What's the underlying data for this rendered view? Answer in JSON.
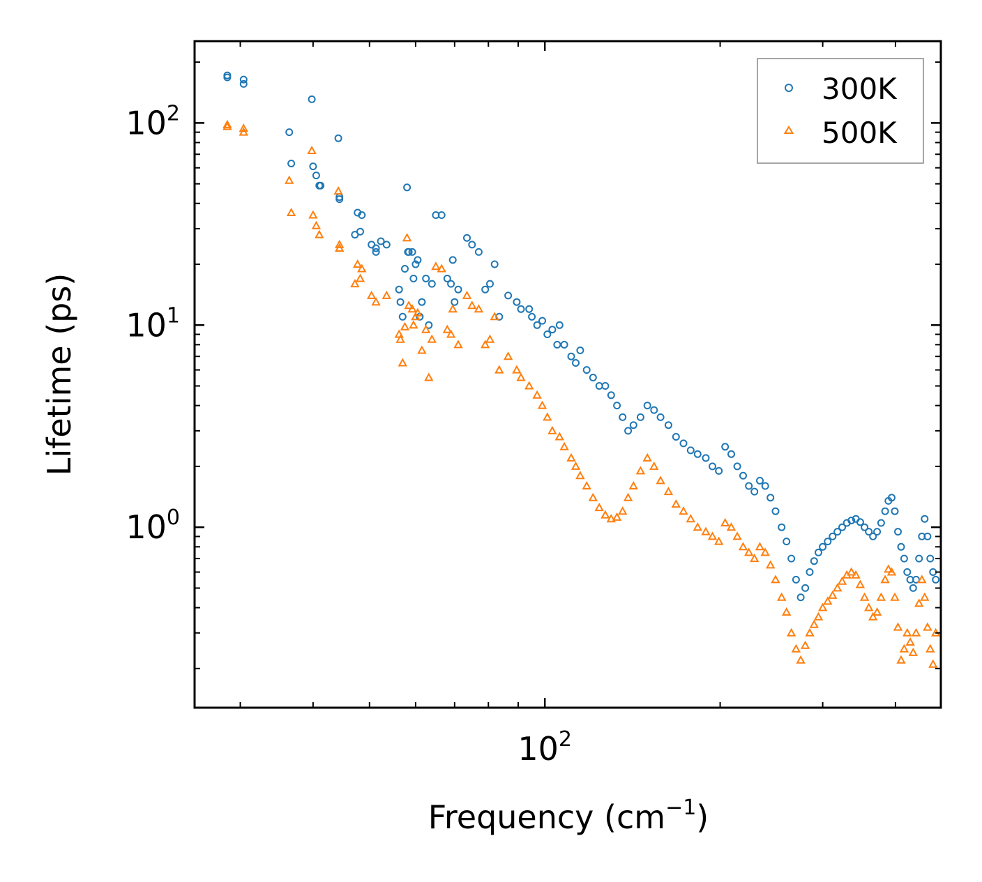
{
  "chart_data": {
    "type": "scatter",
    "xscale": "log",
    "yscale": "log",
    "xlabel": "Frequency (cm",
    "xlabel_sup": "−1",
    "xlabel_close": ")",
    "ylabel": "Lifetime (ps)",
    "xlim": [
      25.04,
      478.6
    ],
    "ylim": [
      0.128,
      254
    ],
    "x_ticks": [
      {
        "value": 100,
        "base": "10",
        "exp": "2"
      }
    ],
    "y_ticks": [
      {
        "value": 1,
        "base": "10",
        "exp": "0"
      },
      {
        "value": 10,
        "base": "10",
        "exp": "1"
      },
      {
        "value": 100,
        "base": "10",
        "exp": "2"
      }
    ],
    "legend_position": "top-right",
    "series": [
      {
        "name": "300K",
        "marker": "circle",
        "color": "#1f77b4",
        "points": [
          [
            28.5,
            172
          ],
          [
            28.5,
            168
          ],
          [
            30.4,
            164
          ],
          [
            30.4,
            156
          ],
          [
            36.4,
            90
          ],
          [
            36.7,
            63
          ],
          [
            39.8,
            131
          ],
          [
            40,
            61
          ],
          [
            40.5,
            55
          ],
          [
            41,
            49
          ],
          [
            41.2,
            49
          ],
          [
            44.2,
            84
          ],
          [
            44.4,
            43
          ],
          [
            44.4,
            42
          ],
          [
            47.2,
            28
          ],
          [
            47.7,
            36
          ],
          [
            48.2,
            29
          ],
          [
            48.5,
            35
          ],
          [
            50.4,
            25
          ],
          [
            51.3,
            24
          ],
          [
            51.3,
            23
          ],
          [
            52.3,
            26
          ],
          [
            53.5,
            25
          ],
          [
            56.2,
            15
          ],
          [
            56.5,
            13
          ],
          [
            57,
            11
          ],
          [
            57.5,
            19
          ],
          [
            58,
            48
          ],
          [
            58.2,
            23
          ],
          [
            58.4,
            23
          ],
          [
            59.2,
            23
          ],
          [
            59.5,
            17
          ],
          [
            60,
            20
          ],
          [
            60.5,
            21
          ],
          [
            61,
            11
          ],
          [
            61.5,
            13
          ],
          [
            62.5,
            17
          ],
          [
            63.2,
            10
          ],
          [
            64,
            16
          ],
          [
            65,
            35
          ],
          [
            66.5,
            35
          ],
          [
            68,
            17
          ],
          [
            69,
            16
          ],
          [
            69.5,
            21
          ],
          [
            70,
            13
          ],
          [
            71,
            15
          ],
          [
            73.5,
            27
          ],
          [
            75,
            25
          ],
          [
            77,
            23
          ],
          [
            79,
            15
          ],
          [
            80.5,
            16
          ],
          [
            82,
            20
          ],
          [
            83.5,
            11
          ],
          [
            86.5,
            14
          ],
          [
            89.5,
            13
          ],
          [
            91,
            12
          ],
          [
            94,
            12
          ],
          [
            95,
            11
          ],
          [
            97,
            10
          ],
          [
            99,
            10.5
          ],
          [
            101,
            9
          ],
          [
            103,
            9.5
          ],
          [
            105,
            8
          ],
          [
            106,
            10
          ],
          [
            108,
            8
          ],
          [
            111,
            7
          ],
          [
            113,
            6.5
          ],
          [
            115,
            7.5
          ],
          [
            118,
            6
          ],
          [
            121,
            5.5
          ],
          [
            124,
            5
          ],
          [
            127,
            5
          ],
          [
            130,
            4.5
          ],
          [
            133,
            4
          ],
          [
            136,
            3.5
          ],
          [
            139,
            3
          ],
          [
            142,
            3.2
          ],
          [
            146,
            3.5
          ],
          [
            150,
            4
          ],
          [
            154,
            3.8
          ],
          [
            158,
            3.5
          ],
          [
            163,
            3.2
          ],
          [
            168,
            2.8
          ],
          [
            173,
            2.6
          ],
          [
            178,
            2.4
          ],
          [
            183,
            2.3
          ],
          [
            189,
            2.2
          ],
          [
            194,
            2
          ],
          [
            199,
            1.9
          ],
          [
            204,
            2.5
          ],
          [
            209,
            2.3
          ],
          [
            214,
            2
          ],
          [
            219,
            1.8
          ],
          [
            224,
            1.6
          ],
          [
            229,
            1.5
          ],
          [
            234,
            1.7
          ],
          [
            239,
            1.6
          ],
          [
            244,
            1.4
          ],
          [
            249,
            1.2
          ],
          [
            255,
            1
          ],
          [
            260,
            0.85
          ],
          [
            265,
            0.7
          ],
          [
            270,
            0.55
          ],
          [
            275,
            0.45
          ],
          [
            280,
            0.5
          ],
          [
            285,
            0.6
          ],
          [
            290,
            0.68
          ],
          [
            295,
            0.75
          ],
          [
            300,
            0.8
          ],
          [
            306,
            0.85
          ],
          [
            312,
            0.9
          ],
          [
            318,
            0.95
          ],
          [
            324,
            1
          ],
          [
            330,
            1.05
          ],
          [
            336,
            1.08
          ],
          [
            342,
            1.1
          ],
          [
            348,
            1.06
          ],
          [
            354,
            1
          ],
          [
            360,
            0.95
          ],
          [
            366,
            0.9
          ],
          [
            372,
            0.95
          ],
          [
            378,
            1.05
          ],
          [
            384,
            1.2
          ],
          [
            389,
            1.35
          ],
          [
            394,
            1.4
          ],
          [
            399,
            1.2
          ],
          [
            404,
            0.95
          ],
          [
            409,
            0.8
          ],
          [
            414,
            0.7
          ],
          [
            419,
            0.6
          ],
          [
            424,
            0.55
          ],
          [
            429,
            0.5
          ],
          [
            434,
            0.55
          ],
          [
            439,
            0.7
          ],
          [
            444,
            0.9
          ],
          [
            449,
            1.1
          ],
          [
            454,
            0.9
          ],
          [
            459,
            0.7
          ],
          [
            464,
            0.6
          ],
          [
            469,
            0.55
          ]
        ]
      },
      {
        "name": "500K",
        "marker": "triangle",
        "color": "#ff7f0e",
        "points": [
          [
            28.5,
            98
          ],
          [
            28.5,
            96
          ],
          [
            30.4,
            94
          ],
          [
            30.4,
            90
          ],
          [
            36.4,
            52
          ],
          [
            36.7,
            36
          ],
          [
            39.8,
            73
          ],
          [
            40,
            35
          ],
          [
            40.5,
            31
          ],
          [
            41,
            28
          ],
          [
            44.2,
            46
          ],
          [
            44.4,
            25
          ],
          [
            44.4,
            24
          ],
          [
            47.2,
            16
          ],
          [
            47.7,
            20
          ],
          [
            48.2,
            17
          ],
          [
            48.5,
            19
          ],
          [
            50.4,
            14
          ],
          [
            51.3,
            13
          ],
          [
            53.5,
            14
          ],
          [
            56.2,
            9
          ],
          [
            56.5,
            8.5
          ],
          [
            57,
            6.5
          ],
          [
            57.5,
            9.8
          ],
          [
            58,
            27
          ],
          [
            58.4,
            12.5
          ],
          [
            59.2,
            12
          ],
          [
            59.5,
            10
          ],
          [
            60,
            11
          ],
          [
            60.5,
            11.5
          ],
          [
            61.5,
            7.5
          ],
          [
            62.5,
            9.5
          ],
          [
            63.2,
            5.5
          ],
          [
            64,
            8.5
          ],
          [
            65,
            19.5
          ],
          [
            66.5,
            19
          ],
          [
            68,
            9.5
          ],
          [
            69,
            9
          ],
          [
            69.5,
            12
          ],
          [
            71,
            8
          ],
          [
            73.5,
            14
          ],
          [
            75,
            12.5
          ],
          [
            77,
            12
          ],
          [
            79,
            8
          ],
          [
            80.5,
            8.5
          ],
          [
            82,
            11
          ],
          [
            83.5,
            6
          ],
          [
            86.5,
            7
          ],
          [
            89.5,
            6
          ],
          [
            91,
            5.5
          ],
          [
            94,
            5
          ],
          [
            97,
            4.5
          ],
          [
            99,
            4
          ],
          [
            101,
            3.5
          ],
          [
            103,
            3
          ],
          [
            106,
            2.8
          ],
          [
            108,
            2.5
          ],
          [
            111,
            2.2
          ],
          [
            113,
            2
          ],
          [
            115,
            1.8
          ],
          [
            118,
            1.6
          ],
          [
            121,
            1.4
          ],
          [
            124,
            1.25
          ],
          [
            127,
            1.15
          ],
          [
            130,
            1.1
          ],
          [
            133,
            1.12
          ],
          [
            136,
            1.2
          ],
          [
            139,
            1.4
          ],
          [
            142,
            1.6
          ],
          [
            146,
            1.9
          ],
          [
            150,
            2.2
          ],
          [
            154,
            2
          ],
          [
            158,
            1.7
          ],
          [
            163,
            1.5
          ],
          [
            168,
            1.3
          ],
          [
            173,
            1.2
          ],
          [
            178,
            1.1
          ],
          [
            183,
            1
          ],
          [
            189,
            0.95
          ],
          [
            194,
            0.9
          ],
          [
            199,
            0.85
          ],
          [
            204,
            1.05
          ],
          [
            209,
            1
          ],
          [
            214,
            0.9
          ],
          [
            219,
            0.8
          ],
          [
            224,
            0.75
          ],
          [
            229,
            0.7
          ],
          [
            234,
            0.8
          ],
          [
            239,
            0.75
          ],
          [
            244,
            0.65
          ],
          [
            249,
            0.55
          ],
          [
            255,
            0.45
          ],
          [
            260,
            0.38
          ],
          [
            265,
            0.3
          ],
          [
            270,
            0.25
          ],
          [
            275,
            0.22
          ],
          [
            280,
            0.26
          ],
          [
            285,
            0.3
          ],
          [
            290,
            0.33
          ],
          [
            295,
            0.36
          ],
          [
            300,
            0.4
          ],
          [
            306,
            0.43
          ],
          [
            312,
            0.46
          ],
          [
            318,
            0.5
          ],
          [
            324,
            0.54
          ],
          [
            330,
            0.58
          ],
          [
            336,
            0.6
          ],
          [
            342,
            0.58
          ],
          [
            348,
            0.52
          ],
          [
            354,
            0.45
          ],
          [
            360,
            0.4
          ],
          [
            366,
            0.36
          ],
          [
            372,
            0.38
          ],
          [
            378,
            0.45
          ],
          [
            384,
            0.55
          ],
          [
            389,
            0.62
          ],
          [
            394,
            0.6
          ],
          [
            399,
            0.45
          ],
          [
            404,
            0.32
          ],
          [
            409,
            0.22
          ],
          [
            414,
            0.25
          ],
          [
            419,
            0.3
          ],
          [
            424,
            0.27
          ],
          [
            429,
            0.24
          ],
          [
            434,
            0.3
          ],
          [
            439,
            0.42
          ],
          [
            444,
            0.55
          ],
          [
            449,
            0.45
          ],
          [
            454,
            0.32
          ],
          [
            459,
            0.25
          ],
          [
            464,
            0.21
          ],
          [
            469,
            0.3
          ]
        ]
      }
    ]
  }
}
